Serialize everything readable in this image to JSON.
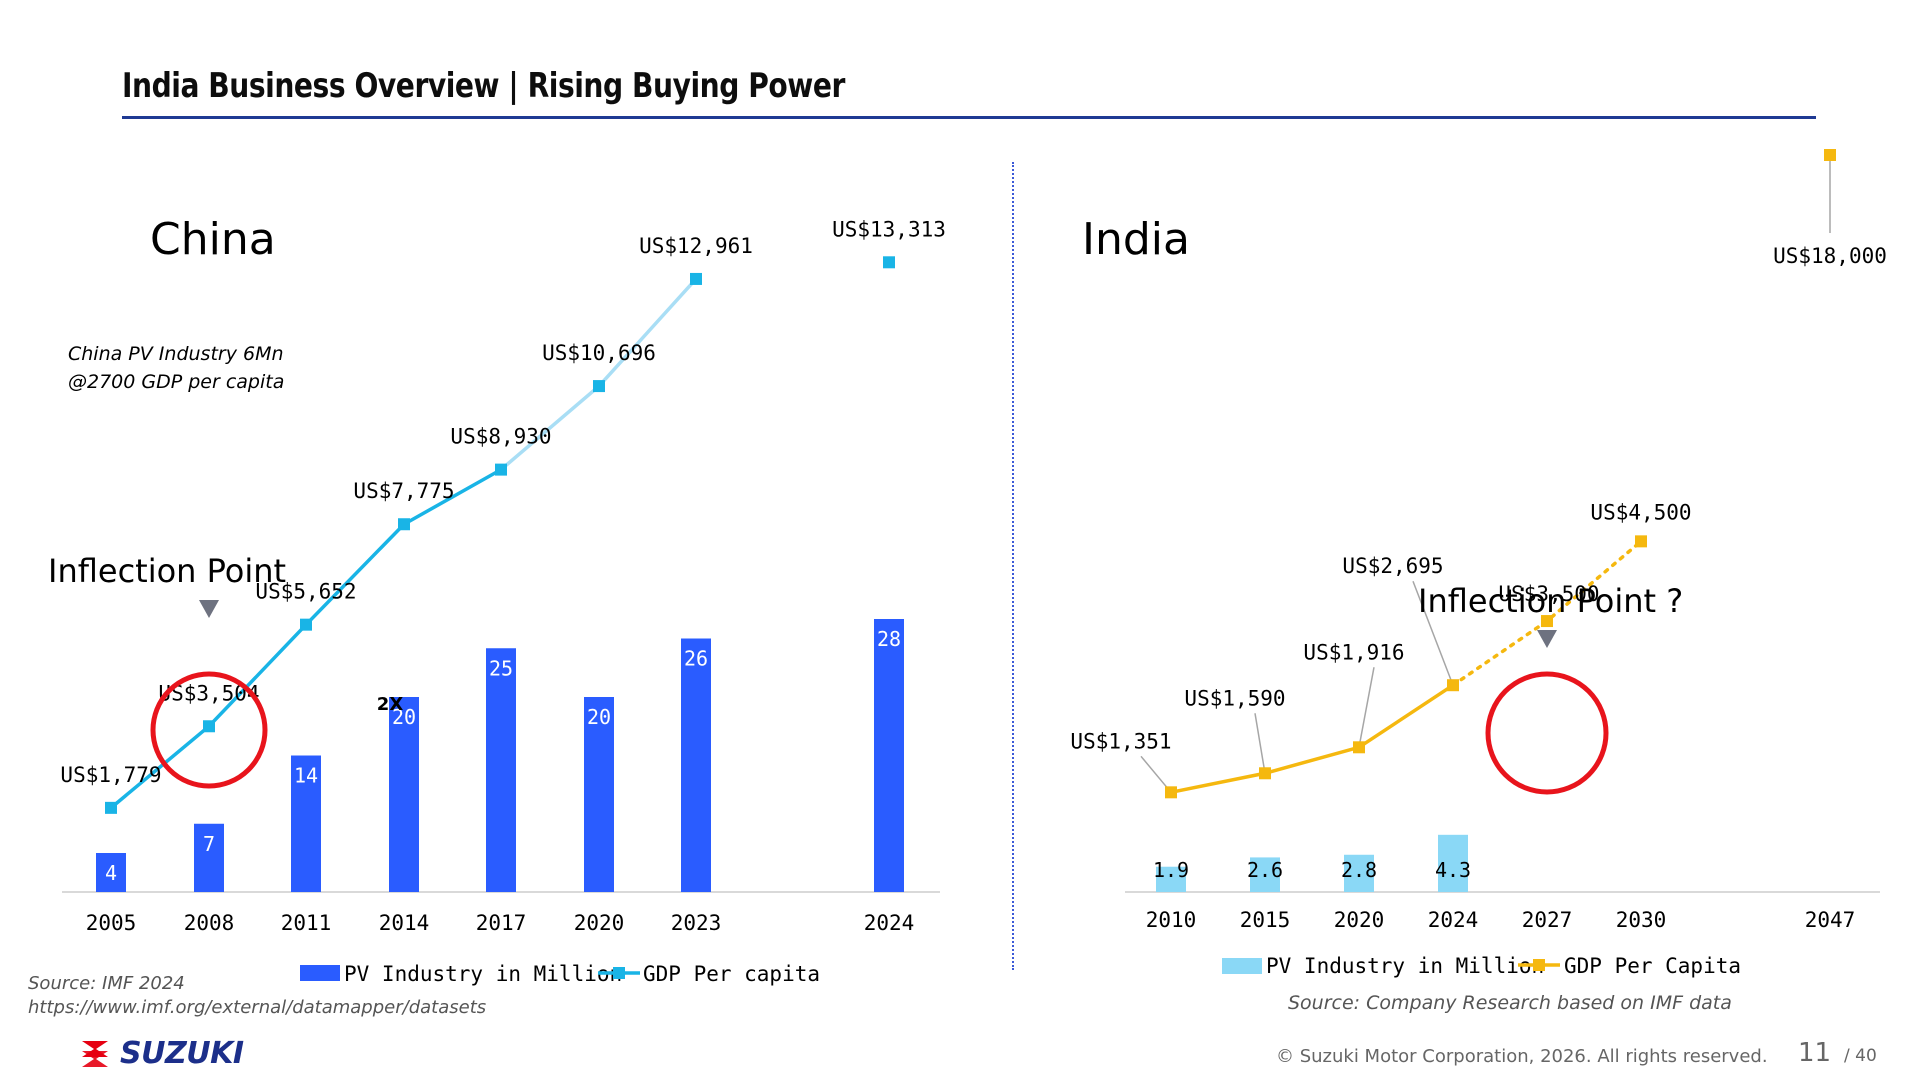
{
  "slide": {
    "title": "India Business Overview | Rising Buying Power",
    "source_china_1": "Source: IMF 2024",
    "source_china_2": "https://www.imf.org/external/datamapper/datasets",
    "source_india": "Source: Company Research based on IMF data",
    "logo_text": "SUZUKI",
    "copyright": "© Suzuki Motor Corporation, 2026. All rights reserved.",
    "page_number": "11",
    "page_total": "/ 40"
  },
  "colors": {
    "china_bar": "#2a5cff",
    "china_line": "#19b4e6",
    "china_line_light": "#a9def5",
    "india_bar": "#8ad8f6",
    "india_line": "#f5b80f",
    "circle": "#e8141c",
    "brand": "#1c2f8a",
    "logo_red": "#e60012"
  },
  "chart_data": [
    {
      "type": "bar+line",
      "title": "China",
      "note_line1": "China PV Industry 6Mn",
      "note_line2": "@2700 GDP per capita",
      "inflection_label": "Inflection Point",
      "inflection_at": "2008",
      "annotation_2x": "2X",
      "categories": [
        "2005",
        "2008",
        "2011",
        "2014",
        "2017",
        "2020",
        "2023",
        "2024"
      ],
      "series": [
        {
          "name": "PV Industry in Million",
          "type": "bar",
          "axis": "left",
          "values": [
            4,
            7,
            14,
            20,
            25,
            20,
            26,
            28
          ],
          "labels": [
            "4",
            "7",
            "14",
            "20",
            "25",
            "20",
            "26",
            "28"
          ]
        },
        {
          "name": "GDP Per capita",
          "type": "line",
          "axis": "right",
          "values": [
            1779,
            3504,
            5652,
            7775,
            8930,
            10696,
            12961,
            13313
          ],
          "labels": [
            "US$1,779",
            "US$3,504",
            "US$5,652",
            "US$7,775",
            "US$8,930",
            "US$10,696",
            "US$12,961",
            "US$13,313"
          ],
          "connected_through": "2023"
        }
      ],
      "ylim_bars": [
        0,
        30
      ],
      "ylim_line": [
        0,
        18000
      ],
      "legend": [
        "PV Industry in Million",
        "GDP Per capita"
      ],
      "legend_position": "bottom"
    },
    {
      "type": "bar+line",
      "title": "India",
      "inflection_label": "Inflection Point ?",
      "inflection_at": "2027",
      "categories": [
        "2010",
        "2015",
        "2020",
        "2024",
        "2027",
        "2030",
        "2047"
      ],
      "series": [
        {
          "name": "PV Industry in Million",
          "type": "bar",
          "axis": "left",
          "values": [
            1.9,
            2.6,
            2.8,
            4.3,
            null,
            null,
            null
          ],
          "labels": [
            "1.9",
            "2.6",
            "2.8",
            "4.3",
            "",
            "",
            ""
          ]
        },
        {
          "name": "GDP Per Capita",
          "type": "line",
          "axis": "right",
          "values": [
            1351,
            1590,
            1916,
            2695,
            3500,
            4500,
            18000
          ],
          "labels": [
            "US$1,351",
            "US$1,590",
            "US$1,916",
            "US$2,695",
            "US$3,500",
            "US$4,500",
            "US$18,000"
          ],
          "projected_from": "2024"
        }
      ],
      "ylim_bars": [
        0,
        30
      ],
      "ylim_line": [
        0,
        18000
      ],
      "legend": [
        "PV Industry in Million",
        "GDP Per Capita"
      ],
      "legend_position": "bottom"
    }
  ]
}
